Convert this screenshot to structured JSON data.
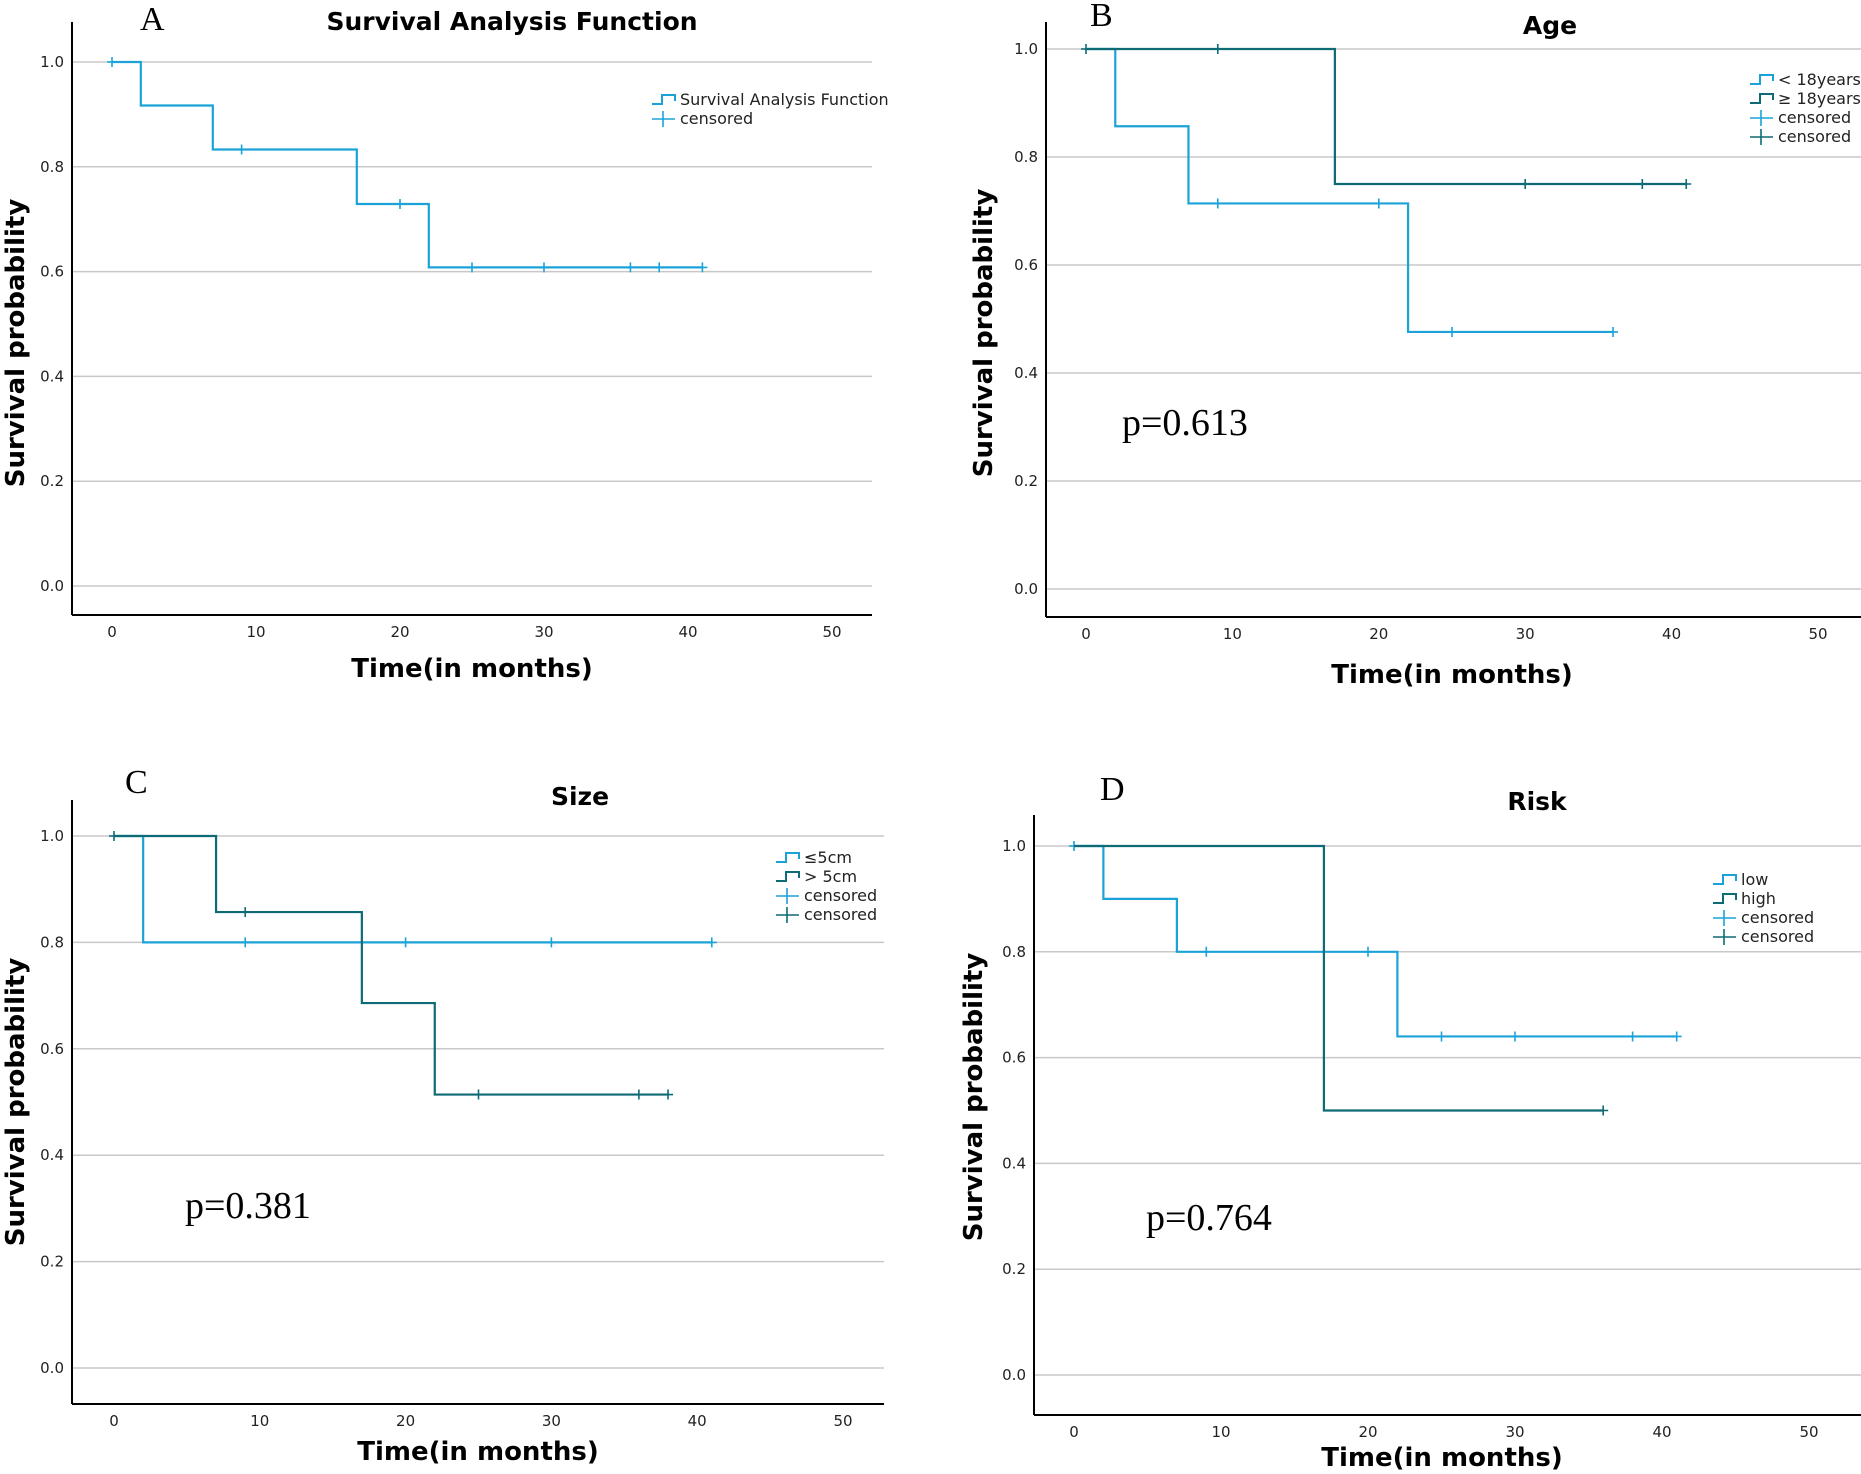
{
  "colors": {
    "light": "#1ba3d8",
    "dark": "#0e6a74"
  },
  "chart_data": [
    {
      "type": "line",
      "letter": "A",
      "title": "Survival Analysis Function",
      "xlabel": "Time(in months)",
      "ylabel": "Survival probability",
      "xlim": [
        0,
        50
      ],
      "ylim": [
        0,
        1
      ],
      "xticks": [
        0,
        10,
        20,
        30,
        40,
        50
      ],
      "yticks": [
        0.0,
        0.2,
        0.4,
        0.6,
        0.8,
        1.0
      ],
      "ytick_labels": [
        "0.0",
        "0.2",
        "0.4",
        "0.6",
        "0.8",
        "1.0"
      ],
      "pvalue": "",
      "series": [
        {
          "name": "Survival Analysis Function",
          "color": "light",
          "steps": [
            [
              0,
              1.0
            ],
            [
              2,
              0.917
            ],
            [
              7,
              0.833
            ],
            [
              17,
              0.729
            ],
            [
              22,
              0.608
            ]
          ],
          "end": 41,
          "censored": [
            0,
            9,
            20,
            25,
            30,
            36,
            38,
            41
          ]
        }
      ],
      "legend": [
        {
          "label": "Survival Analysis Function",
          "kind": "step",
          "color": "light"
        },
        {
          "label": "censored",
          "kind": "plus",
          "color": "light"
        }
      ]
    },
    {
      "type": "line",
      "letter": "B",
      "title": "Age",
      "xlabel": "Time(in months)",
      "ylabel": "Survival probability",
      "xlim": [
        0,
        50
      ],
      "ylim": [
        0,
        1
      ],
      "xticks": [
        0,
        10,
        20,
        30,
        40,
        50
      ],
      "yticks": [
        0.0,
        0.2,
        0.4,
        0.6,
        0.8,
        1.0
      ],
      "ytick_labels": [
        "0.0",
        "0.2",
        "0.4",
        "0.6",
        "0.8",
        "1.0"
      ],
      "pvalue": "p=0.613",
      "series": [
        {
          "name": "< 18years",
          "color": "light",
          "steps": [
            [
              0,
              1.0
            ],
            [
              2,
              0.857
            ],
            [
              7,
              0.714
            ],
            [
              22,
              0.476
            ]
          ],
          "end": 36,
          "censored": [
            9,
            20,
            25,
            36
          ]
        },
        {
          "name": "≥ 18years",
          "color": "dark",
          "steps": [
            [
              0,
              1.0
            ],
            [
              17,
              0.75
            ]
          ],
          "end": 41,
          "censored": [
            0,
            9,
            30,
            38,
            41
          ]
        }
      ],
      "legend": [
        {
          "label": "< 18years",
          "kind": "step",
          "color": "light"
        },
        {
          "label": "≥ 18years",
          "kind": "step",
          "color": "dark"
        },
        {
          "label": "censored",
          "kind": "plus",
          "color": "light"
        },
        {
          "label": "censored",
          "kind": "plus",
          "color": "dark"
        }
      ]
    },
    {
      "type": "line",
      "letter": "C",
      "title": "Size",
      "xlabel": "Time(in months)",
      "ylabel": "Survival probability",
      "xlim": [
        0,
        50
      ],
      "ylim": [
        0,
        1
      ],
      "xticks": [
        0,
        10,
        20,
        30,
        40,
        50
      ],
      "yticks": [
        0.0,
        0.2,
        0.4,
        0.6,
        0.8,
        1.0
      ],
      "ytick_labels": [
        "0.0",
        "0.2",
        "0.4",
        "0.6",
        "0.8",
        "1.0"
      ],
      "pvalue": "p=0.381",
      "series": [
        {
          "name": "≤5cm",
          "color": "light",
          "steps": [
            [
              0,
              1.0
            ],
            [
              2,
              0.8
            ]
          ],
          "end": 41,
          "censored": [
            9,
            20,
            30,
            41
          ]
        },
        {
          "name": "> 5cm",
          "color": "dark",
          "steps": [
            [
              0,
              1.0
            ],
            [
              7,
              0.857
            ],
            [
              17,
              0.686
            ],
            [
              22,
              0.514
            ]
          ],
          "end": 38,
          "censored": [
            0,
            9,
            25,
            36,
            38
          ]
        }
      ],
      "legend": [
        {
          "label": "≤5cm",
          "kind": "step",
          "color": "light"
        },
        {
          "label": "> 5cm",
          "kind": "step",
          "color": "dark"
        },
        {
          "label": "censored",
          "kind": "plus",
          "color": "light"
        },
        {
          "label": "censored",
          "kind": "plus",
          "color": "dark"
        }
      ]
    },
    {
      "type": "line",
      "letter": "D",
      "title": "Risk",
      "xlabel": "Time(in months)",
      "ylabel": "Survival probability",
      "xlim": [
        0,
        50
      ],
      "ylim": [
        0,
        1
      ],
      "xticks": [
        0,
        10,
        20,
        30,
        40,
        50
      ],
      "yticks": [
        0.0,
        0.2,
        0.4,
        0.6,
        0.8,
        1.0
      ],
      "ytick_labels": [
        "0.0",
        "0.2",
        "0.4",
        "0.6",
        "0.8",
        "1.0"
      ],
      "pvalue": "p=0.764",
      "series": [
        {
          "name": "low",
          "color": "light",
          "steps": [
            [
              0,
              1.0
            ],
            [
              2,
              0.9
            ],
            [
              7,
              0.8
            ],
            [
              22,
              0.64
            ]
          ],
          "end": 41,
          "censored": [
            0,
            9,
            20,
            25,
            30,
            38,
            41
          ]
        },
        {
          "name": "high",
          "color": "dark",
          "steps": [
            [
              0,
              1.0
            ],
            [
              17,
              0.5
            ]
          ],
          "end": 36,
          "censored": [
            36
          ]
        }
      ],
      "legend": [
        {
          "label": "low",
          "kind": "step",
          "color": "light"
        },
        {
          "label": "high",
          "kind": "step",
          "color": "dark"
        },
        {
          "label": "censored",
          "kind": "plus",
          "color": "light"
        },
        {
          "label": "censored",
          "kind": "plus",
          "color": "dark"
        }
      ]
    }
  ]
}
